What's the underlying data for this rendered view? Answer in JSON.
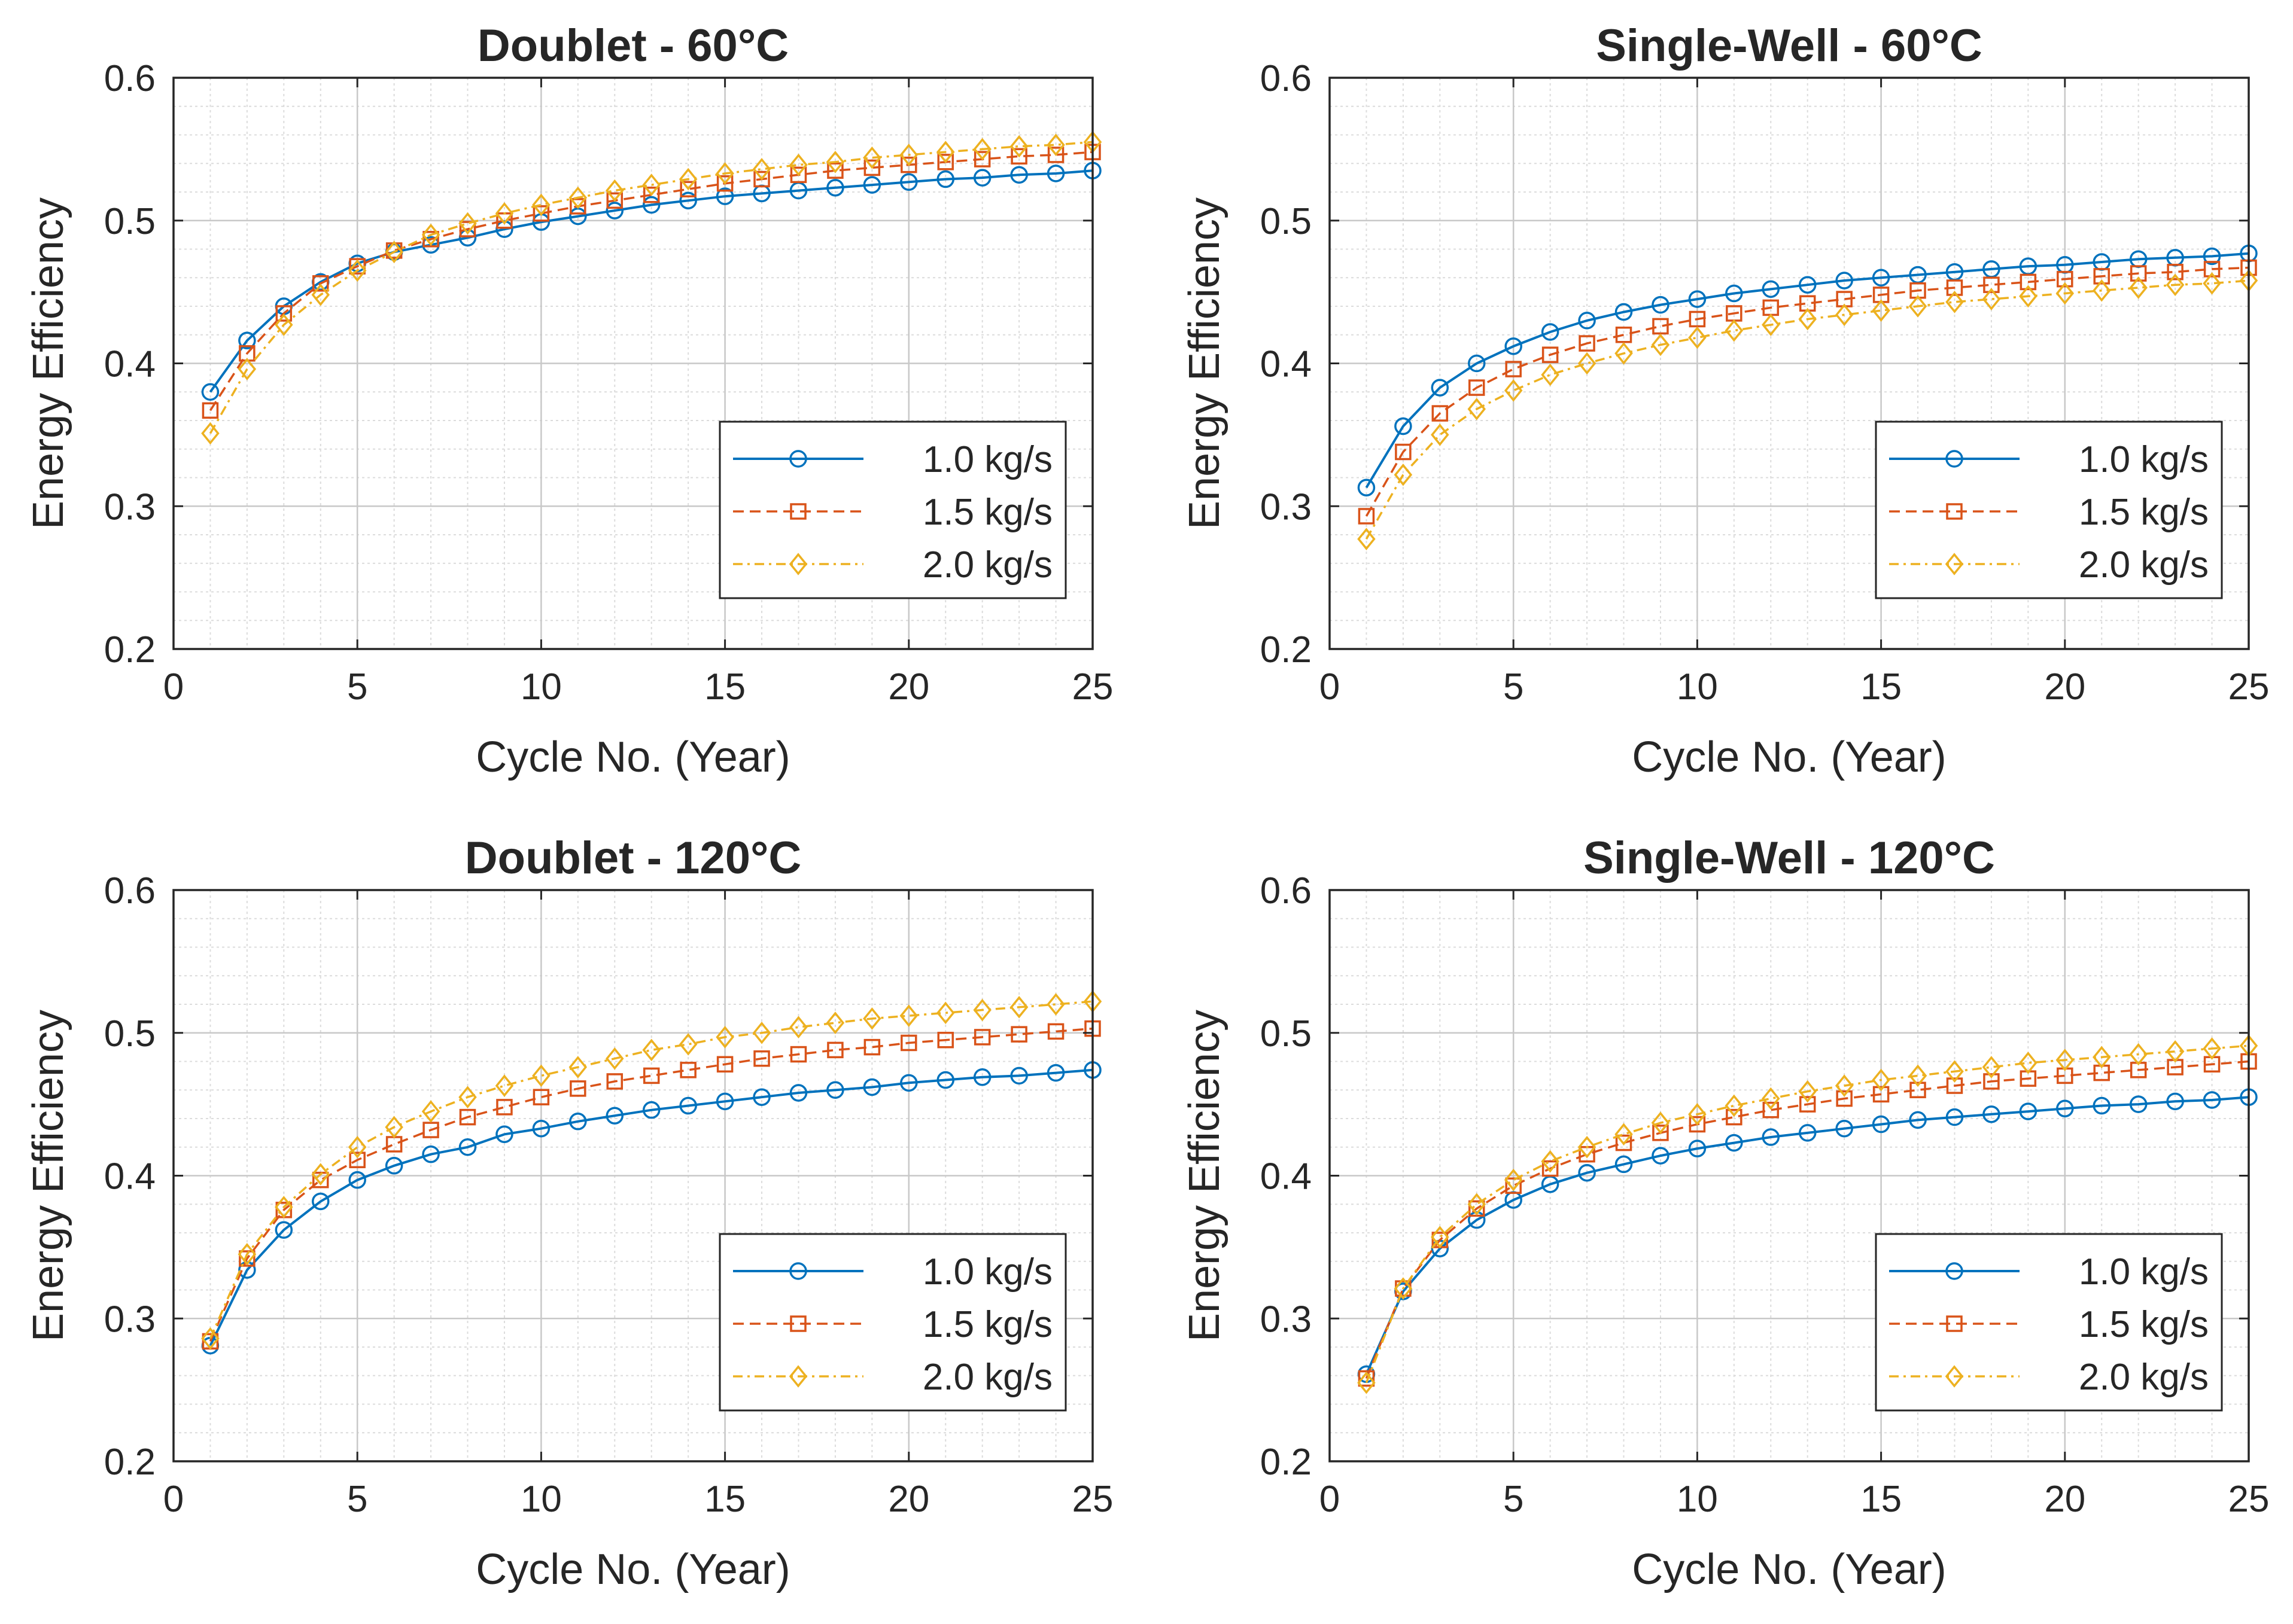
{
  "colors": {
    "s1": "#0072BD",
    "s2": "#D95319",
    "s3": "#EDB120",
    "grid": "#dcdcdc",
    "axis": "#262626"
  },
  "chart_data": [
    {
      "type": "line",
      "title": "Doublet - 60°C",
      "xlabel": "Cycle No. (Year)",
      "ylabel": "Energy Efficiency",
      "xlim": [
        0,
        25
      ],
      "ylim": [
        0.2,
        0.6
      ],
      "xticks": [
        "0",
        "5",
        "10",
        "15",
        "20",
        "25"
      ],
      "yticks": [
        "0.2",
        "0.3",
        "0.4",
        "0.5",
        "0.6"
      ],
      "grid": true,
      "minor_grid": true,
      "legend_position": "bottom-right",
      "x": [
        1,
        2,
        3,
        4,
        5,
        6,
        7,
        8,
        9,
        10,
        11,
        12,
        13,
        14,
        15,
        16,
        17,
        18,
        19,
        20,
        21,
        22,
        23,
        24,
        25
      ],
      "series": [
        {
          "name": "1.0 kg/s",
          "marker": "circle",
          "line": "solid",
          "values": [
            0.38,
            0.416,
            0.44,
            0.457,
            0.47,
            0.478,
            0.483,
            0.488,
            0.494,
            0.499,
            0.503,
            0.507,
            0.511,
            0.514,
            0.517,
            0.519,
            0.521,
            0.523,
            0.525,
            0.527,
            0.529,
            0.53,
            0.532,
            0.533,
            0.535
          ]
        },
        {
          "name": "1.5 kg/s",
          "marker": "square",
          "line": "dashed",
          "values": [
            0.367,
            0.407,
            0.435,
            0.456,
            0.468,
            0.479,
            0.487,
            0.494,
            0.5,
            0.505,
            0.51,
            0.514,
            0.518,
            0.522,
            0.526,
            0.529,
            0.532,
            0.535,
            0.537,
            0.539,
            0.541,
            0.543,
            0.545,
            0.546,
            0.548
          ]
        },
        {
          "name": "2.0 kg/s",
          "marker": "diamond",
          "line": "dashdot",
          "values": [
            0.351,
            0.396,
            0.427,
            0.448,
            0.465,
            0.478,
            0.49,
            0.498,
            0.505,
            0.511,
            0.516,
            0.521,
            0.525,
            0.529,
            0.533,
            0.536,
            0.539,
            0.541,
            0.544,
            0.546,
            0.548,
            0.55,
            0.552,
            0.553,
            0.555
          ]
        }
      ]
    },
    {
      "type": "line",
      "title": "Single-Well - 60°C",
      "xlabel": "Cycle No. (Year)",
      "ylabel": "Energy Efficiency",
      "xlim": [
        0,
        25
      ],
      "ylim": [
        0.2,
        0.6
      ],
      "xticks": [
        "0",
        "5",
        "10",
        "15",
        "20",
        "25"
      ],
      "yticks": [
        "0.2",
        "0.3",
        "0.4",
        "0.5",
        "0.6"
      ],
      "grid": true,
      "minor_grid": true,
      "legend_position": "bottom-right",
      "x": [
        1,
        2,
        3,
        4,
        5,
        6,
        7,
        8,
        9,
        10,
        11,
        12,
        13,
        14,
        15,
        16,
        17,
        18,
        19,
        20,
        21,
        22,
        23,
        24,
        25
      ],
      "series": [
        {
          "name": "1.0 kg/s",
          "marker": "circle",
          "line": "solid",
          "values": [
            0.313,
            0.356,
            0.383,
            0.4,
            0.412,
            0.422,
            0.43,
            0.436,
            0.441,
            0.445,
            0.449,
            0.452,
            0.455,
            0.458,
            0.46,
            0.462,
            0.464,
            0.466,
            0.468,
            0.469,
            0.471,
            0.473,
            0.474,
            0.475,
            0.477
          ]
        },
        {
          "name": "1.5 kg/s",
          "marker": "square",
          "line": "dashed",
          "values": [
            0.293,
            0.338,
            0.365,
            0.383,
            0.396,
            0.406,
            0.414,
            0.42,
            0.426,
            0.431,
            0.435,
            0.439,
            0.442,
            0.445,
            0.448,
            0.451,
            0.453,
            0.455,
            0.457,
            0.459,
            0.461,
            0.463,
            0.464,
            0.466,
            0.467
          ]
        },
        {
          "name": "2.0 kg/s",
          "marker": "diamond",
          "line": "dashdot",
          "values": [
            0.277,
            0.322,
            0.35,
            0.368,
            0.381,
            0.392,
            0.4,
            0.407,
            0.413,
            0.418,
            0.423,
            0.427,
            0.431,
            0.434,
            0.437,
            0.44,
            0.443,
            0.445,
            0.447,
            0.449,
            0.451,
            0.453,
            0.455,
            0.456,
            0.458
          ]
        }
      ]
    },
    {
      "type": "line",
      "title": "Doublet - 120°C",
      "xlabel": "Cycle No. (Year)",
      "ylabel": "Energy Efficiency",
      "xlim": [
        0,
        25
      ],
      "ylim": [
        0.2,
        0.6
      ],
      "xticks": [
        "0",
        "5",
        "10",
        "15",
        "20",
        "25"
      ],
      "yticks": [
        "0.2",
        "0.3",
        "0.4",
        "0.5",
        "0.6"
      ],
      "grid": true,
      "minor_grid": true,
      "legend_position": "bottom-right",
      "x": [
        1,
        2,
        3,
        4,
        5,
        6,
        7,
        8,
        9,
        10,
        11,
        12,
        13,
        14,
        15,
        16,
        17,
        18,
        19,
        20,
        21,
        22,
        23,
        24,
        25
      ],
      "series": [
        {
          "name": "1.0 kg/s",
          "marker": "circle",
          "line": "solid",
          "values": [
            0.281,
            0.334,
            0.362,
            0.382,
            0.397,
            0.407,
            0.415,
            0.42,
            0.429,
            0.433,
            0.438,
            0.442,
            0.446,
            0.449,
            0.452,
            0.455,
            0.458,
            0.46,
            0.462,
            0.465,
            0.467,
            0.469,
            0.47,
            0.472,
            0.474
          ]
        },
        {
          "name": "1.5 kg/s",
          "marker": "square",
          "line": "dashed",
          "values": [
            0.284,
            0.342,
            0.376,
            0.397,
            0.411,
            0.422,
            0.432,
            0.441,
            0.448,
            0.455,
            0.461,
            0.466,
            0.47,
            0.474,
            0.478,
            0.482,
            0.485,
            0.488,
            0.49,
            0.493,
            0.495,
            0.497,
            0.499,
            0.501,
            0.503
          ]
        },
        {
          "name": "2.0 kg/s",
          "marker": "diamond",
          "line": "dashdot",
          "values": [
            0.286,
            0.345,
            0.378,
            0.401,
            0.42,
            0.434,
            0.445,
            0.455,
            0.463,
            0.47,
            0.476,
            0.482,
            0.488,
            0.492,
            0.497,
            0.5,
            0.504,
            0.507,
            0.51,
            0.512,
            0.514,
            0.516,
            0.518,
            0.52,
            0.522
          ]
        }
      ]
    },
    {
      "type": "line",
      "title": "Single-Well - 120°C",
      "xlabel": "Cycle No. (Year)",
      "ylabel": "Energy Efficiency",
      "xlim": [
        0,
        25
      ],
      "ylim": [
        0.2,
        0.6
      ],
      "xticks": [
        "0",
        "5",
        "10",
        "15",
        "20",
        "25"
      ],
      "yticks": [
        "0.2",
        "0.3",
        "0.4",
        "0.5",
        "0.6"
      ],
      "grid": true,
      "minor_grid": true,
      "legend_position": "bottom-right",
      "x": [
        1,
        2,
        3,
        4,
        5,
        6,
        7,
        8,
        9,
        10,
        11,
        12,
        13,
        14,
        15,
        16,
        17,
        18,
        19,
        20,
        21,
        22,
        23,
        24,
        25
      ],
      "series": [
        {
          "name": "1.0 kg/s",
          "marker": "circle",
          "line": "solid",
          "values": [
            0.261,
            0.319,
            0.349,
            0.369,
            0.383,
            0.394,
            0.402,
            0.408,
            0.414,
            0.419,
            0.423,
            0.427,
            0.43,
            0.433,
            0.436,
            0.439,
            0.441,
            0.443,
            0.445,
            0.447,
            0.449,
            0.45,
            0.452,
            0.453,
            0.455
          ]
        },
        {
          "name": "1.5 kg/s",
          "marker": "square",
          "line": "dashed",
          "values": [
            0.258,
            0.321,
            0.355,
            0.377,
            0.393,
            0.405,
            0.415,
            0.423,
            0.43,
            0.436,
            0.441,
            0.446,
            0.45,
            0.454,
            0.457,
            0.46,
            0.463,
            0.466,
            0.468,
            0.47,
            0.472,
            0.474,
            0.476,
            0.478,
            0.48
          ]
        },
        {
          "name": "2.0 kg/s",
          "marker": "diamond",
          "line": "dashdot",
          "values": [
            0.255,
            0.321,
            0.357,
            0.38,
            0.397,
            0.41,
            0.42,
            0.429,
            0.437,
            0.443,
            0.449,
            0.454,
            0.459,
            0.463,
            0.467,
            0.47,
            0.473,
            0.476,
            0.479,
            0.481,
            0.483,
            0.485,
            0.487,
            0.489,
            0.491
          ]
        }
      ]
    }
  ]
}
